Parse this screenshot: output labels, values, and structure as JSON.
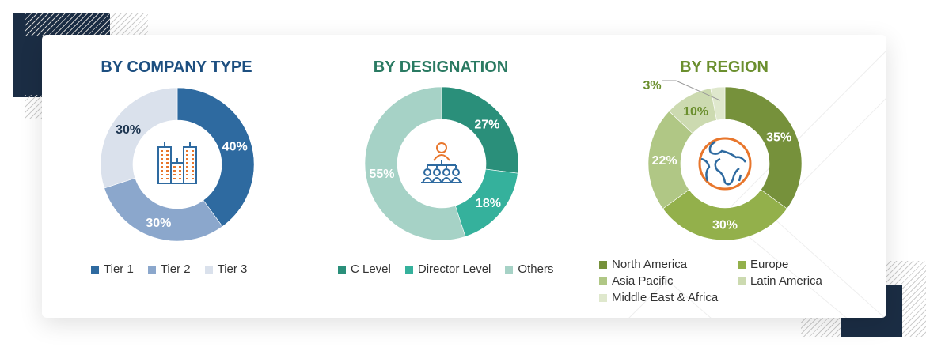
{
  "chart_data": [
    {
      "type": "pie",
      "title": "BY COMPANY TYPE",
      "title_color": "#1d4f80",
      "center_icon": "buildings-icon",
      "categories": [
        "Tier 1",
        "Tier 2",
        "Tier 3"
      ],
      "values": [
        40,
        30,
        30
      ],
      "labels": [
        "40%",
        "30%",
        "30%"
      ],
      "colors": [
        "#2e6aa0",
        "#8ba7cc",
        "#dae1ec"
      ],
      "label_colors": [
        "#fff",
        "#fff",
        "#1d3550"
      ],
      "legend": "bottom"
    },
    {
      "type": "pie",
      "title": "BY DESIGNATION",
      "title_color": "#2a7a62",
      "center_icon": "org-chart-people-icon",
      "categories": [
        "C Level",
        "Director Level",
        "Others"
      ],
      "values": [
        27,
        18,
        55
      ],
      "labels": [
        "27%",
        "18%",
        "55%"
      ],
      "colors": [
        "#2a8f7a",
        "#35b19c",
        "#a6d2c6"
      ],
      "label_colors": [
        "#fff",
        "#fff",
        "#fff"
      ],
      "legend": "bottom"
    },
    {
      "type": "pie",
      "title": "BY REGION",
      "title_color": "#6b8f2e",
      "center_icon": "globe-icon",
      "categories": [
        "North America",
        "Europe",
        "Asia Pacific",
        "Latin America",
        "Middle East & Africa"
      ],
      "values": [
        35,
        30,
        22,
        10,
        3
      ],
      "labels": [
        "35%",
        "30%",
        "22%",
        "10%",
        "3%"
      ],
      "colors": [
        "#76913b",
        "#93b04b",
        "#b0c785",
        "#ccdab0",
        "#dfe8cd"
      ],
      "label_colors": [
        "#fff",
        "#fff",
        "#fff",
        "#6b8f2e",
        "#6b8f2e"
      ],
      "legend": "bottom"
    }
  ]
}
